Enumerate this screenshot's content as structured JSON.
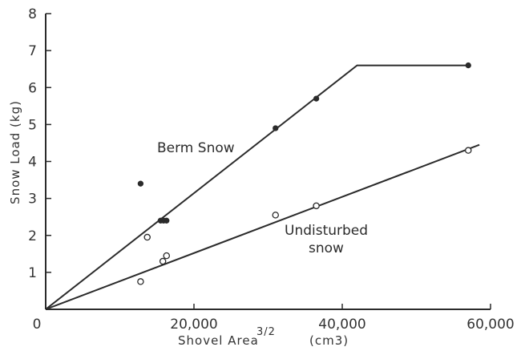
{
  "chart_data": {
    "type": "scatter",
    "title": "",
    "xlabel": "Shovel Area",
    "xlabel_exponent": "3/2",
    "xlabel_unit": "(cm3)",
    "ylabel": "Snow Load (kg)",
    "xlim": [
      0,
      60000
    ],
    "ylim": [
      0,
      8
    ],
    "x_ticks": [
      0,
      20000,
      40000,
      60000
    ],
    "x_tick_labels": [
      "0",
      "20,000",
      "40,000",
      "60,000"
    ],
    "y_ticks": [
      1,
      2,
      3,
      4,
      5,
      6,
      7,
      8
    ],
    "y_tick_labels": [
      "1",
      "2",
      "3",
      "4",
      "5",
      "6",
      "7",
      "8"
    ],
    "grid": false,
    "series": [
      {
        "name": "Berm Snow",
        "marker": "filled-circle",
        "points": [
          {
            "x": 12800,
            "y": 3.4
          },
          {
            "x": 15500,
            "y": 2.4
          },
          {
            "x": 15900,
            "y": 2.4
          },
          {
            "x": 16300,
            "y": 2.4
          },
          {
            "x": 31000,
            "y": 4.9
          },
          {
            "x": 36500,
            "y": 5.7
          },
          {
            "x": 57000,
            "y": 6.6
          }
        ],
        "fit_line": [
          {
            "x": 0,
            "y": 0
          },
          {
            "x": 42000,
            "y": 6.6
          },
          {
            "x": 57000,
            "y": 6.6
          }
        ]
      },
      {
        "name": "Undisturbed snow",
        "marker": "open-circle",
        "points": [
          {
            "x": 12800,
            "y": 0.75
          },
          {
            "x": 13700,
            "y": 1.95
          },
          {
            "x": 15800,
            "y": 1.3
          },
          {
            "x": 16300,
            "y": 1.45
          },
          {
            "x": 31000,
            "y": 2.55
          },
          {
            "x": 36500,
            "y": 2.8
          },
          {
            "x": 57000,
            "y": 4.3
          }
        ],
        "fit_line": [
          {
            "x": 0,
            "y": 0
          },
          {
            "x": 58500,
            "y": 4.45
          }
        ]
      }
    ],
    "annotations": [
      "Berm Snow",
      "Undisturbed",
      "snow"
    ],
    "colors": {
      "ink": "#2b2b2b",
      "background": "#ffffff"
    }
  }
}
